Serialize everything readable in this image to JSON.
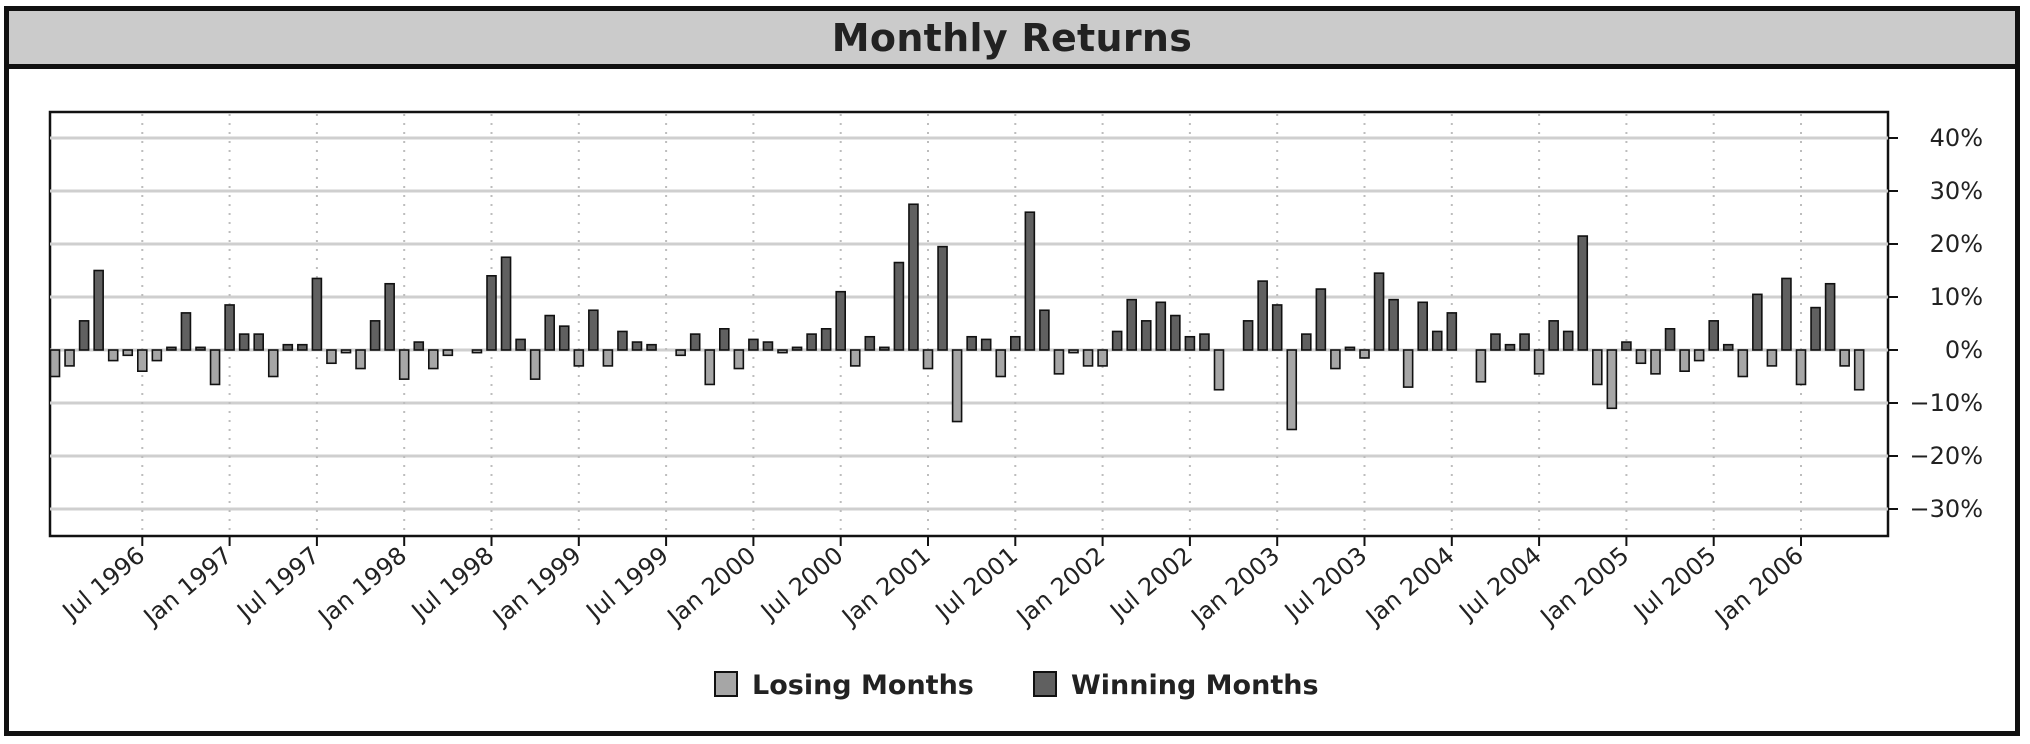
{
  "chart_data": {
    "type": "bar",
    "title": "Monthly Returns",
    "ylim": [
      -35,
      45
    ],
    "y_ticks": [
      40,
      30,
      20,
      10,
      0,
      -10,
      -20,
      -30
    ],
    "y_tick_labels": [
      "40%",
      "30%",
      "20%",
      "10%",
      "0%",
      "−10%",
      "−20%",
      "−30%"
    ],
    "x_tick_labels": [
      "Jul 1996",
      "Jan 1997",
      "Jul 1997",
      "Jan 1998",
      "Jul 1998",
      "Jan 1999",
      "Jul 1999",
      "Jan 2000",
      "Jul 2000",
      "Jan 2001",
      "Jul 2001",
      "Jan 2002",
      "Jul 2002",
      "Jan 2003",
      "Jul 2003",
      "Jan 2004",
      "Jul 2004",
      "Jan 2005",
      "Jul 2005",
      "Jan 2006"
    ],
    "start_label_month_index": 6,
    "months_between_labels": 6,
    "grid": true,
    "legend_position": "bottom",
    "legend": [
      {
        "name": "Losing Months",
        "color": "#a6a6a6"
      },
      {
        "name": "Winning Months",
        "color": "#606060"
      }
    ],
    "values": [
      -5,
      -3,
      5.5,
      15,
      -2,
      -1,
      -4,
      -2,
      0.5,
      7,
      0.5,
      -6.5,
      8.5,
      3,
      3,
      -5,
      1,
      1,
      13.5,
      -2.5,
      -0.5,
      -3.5,
      5.5,
      12.5,
      -5.5,
      1.5,
      -3.5,
      -1,
      0,
      -0.5,
      14,
      17.5,
      2,
      -5.5,
      6.5,
      4.5,
      -3,
      7.5,
      -3,
      3.5,
      1.5,
      1,
      0,
      -1,
      3,
      -6.5,
      4,
      -3.5,
      2,
      1.5,
      -0.5,
      0.5,
      3,
      4,
      11,
      -3,
      2.5,
      0.5,
      16.5,
      27.5,
      -3.5,
      19.5,
      -13.5,
      2.5,
      2,
      -5,
      2.5,
      26,
      7.5,
      -4.5,
      -0.5,
      -3,
      -3,
      3.5,
      9.5,
      5.5,
      9,
      6.5,
      2.5,
      3,
      -7.5,
      0,
      5.5,
      13,
      8.5,
      -15,
      3,
      11.5,
      -3.5,
      0.5,
      -1.5,
      14.5,
      9.5,
      -7,
      9,
      3.5,
      7,
      0,
      -6,
      3,
      1,
      3,
      -4.5,
      5.5,
      3.5,
      21.5,
      -6.5,
      -11,
      1.5,
      -2.5,
      -4.5,
      4,
      -4,
      -2,
      5.5,
      1,
      -5,
      10.5,
      -3,
      13.5,
      -6.5,
      8,
      12.5,
      -3,
      -7.5
    ]
  }
}
